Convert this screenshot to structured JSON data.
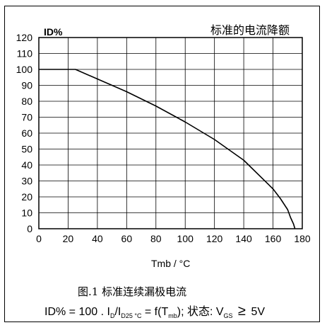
{
  "chart_data": {
    "type": "line",
    "title": "标准的电流降额",
    "ylabel": "ID%",
    "xlabel": "Tmb / °C",
    "xlim": [
      0,
      180
    ],
    "ylim": [
      0,
      120
    ],
    "xticks": [
      0,
      20,
      40,
      60,
      80,
      100,
      120,
      140,
      160,
      180
    ],
    "yticks": [
      0,
      10,
      20,
      30,
      40,
      50,
      60,
      70,
      80,
      90,
      100,
      110,
      120
    ],
    "grid": true,
    "series": [
      {
        "x": [
          0,
          25,
          40,
          60,
          80,
          100,
          120,
          140,
          160,
          165,
          170,
          172,
          174,
          175
        ],
        "y": [
          100,
          100,
          94,
          86,
          77,
          67,
          56,
          43,
          25,
          19,
          12,
          7,
          3,
          0
        ]
      }
    ]
  },
  "caption": {
    "figure": "图.1  标准连续漏极电流",
    "formula_prefix": "ID% = 100 . I",
    "sub_d": "D",
    "slash_i": "/I",
    "sub_d25": "D25 °C",
    "eq_f": " = f(T",
    "sub_mb": "mb",
    "close_state": "); 状态: V",
    "sub_gs": "GS",
    "geq": "≥",
    "volt": "5V"
  }
}
